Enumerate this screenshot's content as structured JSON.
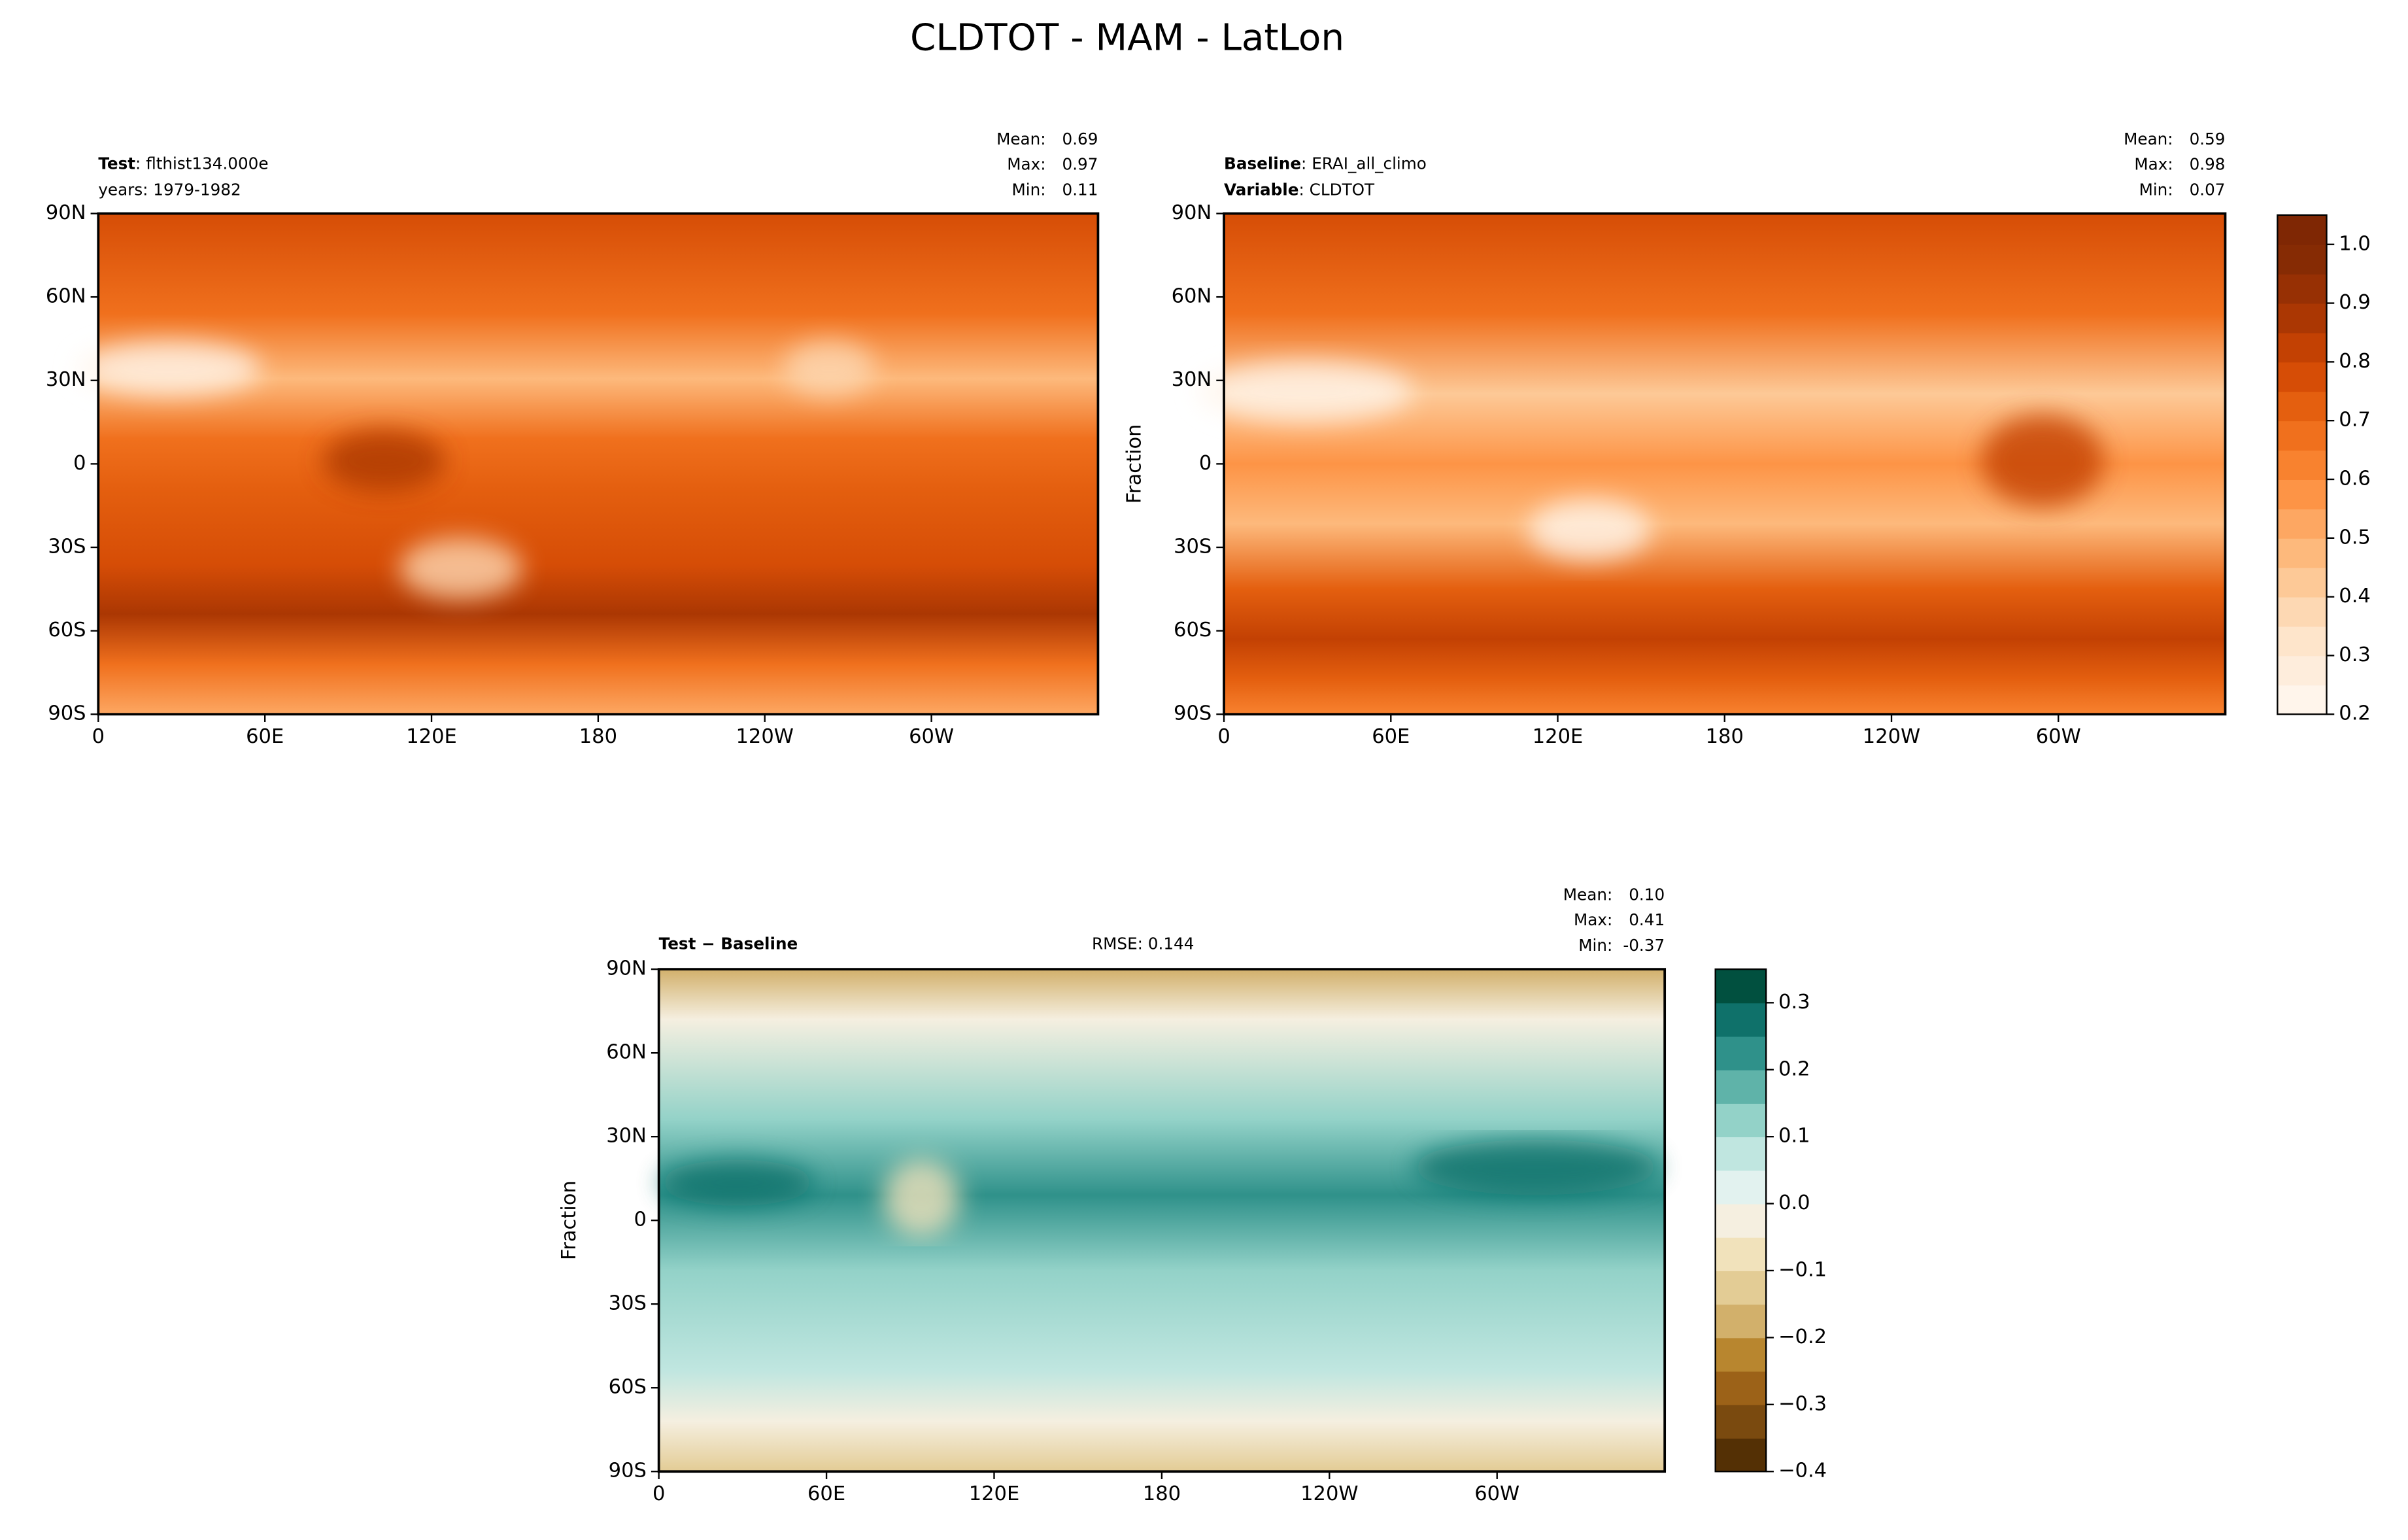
{
  "title": "CLDTOT - MAM - LatLon",
  "chart_data": [
    {
      "type": "map",
      "header": [
        {
          "label": "Test",
          "text": ": flthist134.000e"
        },
        {
          "text": "years: 1979-1982"
        }
      ],
      "stats": [
        {
          "label": "Mean:",
          "value": "0.69"
        },
        {
          "label": "Max:",
          "value": "0.97"
        },
        {
          "label": "Min:",
          "value": "0.11"
        }
      ],
      "xlim": [
        0,
        360
      ],
      "xticks": [
        0,
        {
          "value": 60,
          "label": "60E"
        },
        {
          "value": 120,
          "label": "120E"
        },
        180,
        {
          "value": 240,
          "label": "120W"
        },
        {
          "value": 300,
          "label": "60W"
        }
      ],
      "ylim": [
        -90,
        90
      ],
      "yticks": [
        {
          "value": -90,
          "label": "90S"
        },
        {
          "value": -60,
          "label": "60S"
        },
        {
          "value": -30,
          "label": "30S"
        },
        0,
        {
          "value": 30,
          "label": "30N"
        },
        {
          "value": 60,
          "label": "60N"
        },
        {
          "value": 90,
          "label": "90N"
        }
      ]
    },
    {
      "type": "map",
      "header": [
        {
          "label": "Baseline",
          "text": ": ERAI_all_climo"
        },
        {
          "label": "Variable",
          "text": ": CLDTOT"
        }
      ],
      "stats": [
        {
          "label": "Mean:",
          "value": "0.59"
        },
        {
          "label": "Max:",
          "value": "0.98"
        },
        {
          "label": "Min:",
          "value": "0.07"
        }
      ],
      "ylabel": "Fraction",
      "xlim": [
        0,
        360
      ],
      "xticks": [
        0,
        {
          "value": 60,
          "label": "60E"
        },
        {
          "value": 120,
          "label": "120E"
        },
        180,
        {
          "value": 240,
          "label": "120W"
        },
        {
          "value": 300,
          "label": "60W"
        }
      ],
      "ylim": [
        -90,
        90
      ],
      "yticks": [
        {
          "value": -90,
          "label": "90S"
        },
        {
          "value": -60,
          "label": "60S"
        },
        {
          "value": -30,
          "label": "30S"
        },
        0,
        {
          "value": 30,
          "label": "30N"
        },
        {
          "value": 60,
          "label": "60N"
        },
        {
          "value": 90,
          "label": "90N"
        }
      ],
      "colorbar": {
        "lim": [
          0.2,
          1.05
        ],
        "ticks": [
          0.2,
          0.3,
          0.4,
          0.5,
          0.6,
          0.7,
          0.8,
          0.9,
          {
            "value": 1.0,
            "label": "1.0"
          }
        ],
        "colors": [
          "#fff5eb",
          "#feeddc",
          "#fee5cb",
          "#fdd8b3",
          "#fdc997",
          "#fdb97c",
          "#fda762",
          "#fd9446",
          "#f8822f",
          "#f0701d",
          "#e45f0f",
          "#d64d06",
          "#c34103",
          "#ab3703",
          "#973004",
          "#862b04",
          "#7f2704"
        ]
      }
    },
    {
      "type": "map",
      "header": [
        {
          "label": "Test − Baseline"
        }
      ],
      "rmse": "RMSE: 0.144",
      "stats": [
        {
          "label": "Mean:",
          "value": "0.10"
        },
        {
          "label": "Max:",
          "value": "0.41"
        },
        {
          "label": "Min:",
          "value": "-0.37"
        }
      ],
      "ylabel": "Fraction",
      "xlim": [
        0,
        360
      ],
      "xticks": [
        0,
        {
          "value": 60,
          "label": "60E"
        },
        {
          "value": 120,
          "label": "120E"
        },
        180,
        {
          "value": 240,
          "label": "120W"
        },
        {
          "value": 300,
          "label": "60W"
        }
      ],
      "ylim": [
        -90,
        90
      ],
      "yticks": [
        {
          "value": -90,
          "label": "90S"
        },
        {
          "value": -60,
          "label": "60S"
        },
        {
          "value": -30,
          "label": "30S"
        },
        0,
        {
          "value": 30,
          "label": "30N"
        },
        {
          "value": 60,
          "label": "60N"
        },
        {
          "value": 90,
          "label": "90N"
        }
      ],
      "colorbar": {
        "lim": [
          -0.4,
          0.35
        ],
        "ticks": [
          {
            "value": -0.4,
            "label": "−0.4"
          },
          {
            "value": -0.3,
            "label": "−0.3"
          },
          {
            "value": -0.2,
            "label": "−0.2"
          },
          {
            "value": -0.1,
            "label": "−0.1"
          },
          {
            "value": 0,
            "label": "0.0"
          },
          0.1,
          0.2,
          0.3
        ],
        "colors": [
          "#543005",
          "#7a4a0f",
          "#9c6218",
          "#b8862f",
          "#d2b06b",
          "#e3cc95",
          "#f1e2bb",
          "#f5efe0",
          "#e2f2ef",
          "#c0e6e0",
          "#93d2c8",
          "#5fb3a9",
          "#2f918a",
          "#0f716a",
          "#01503f"
        ]
      }
    }
  ]
}
